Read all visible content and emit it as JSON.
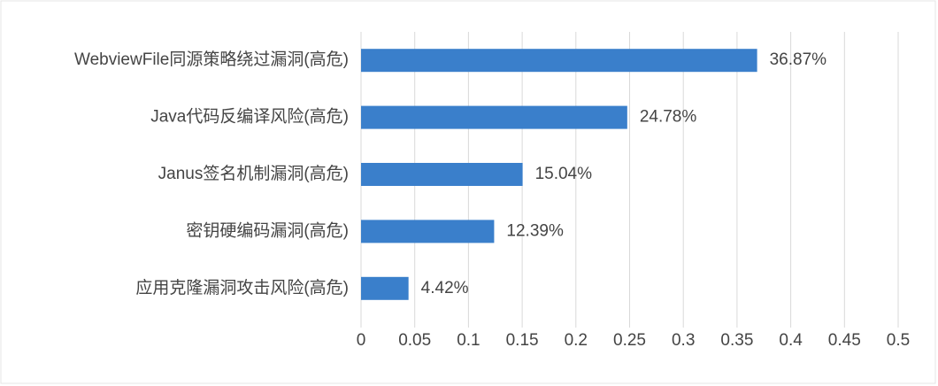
{
  "chart_data": {
    "type": "hbar",
    "categories": [
      "WebviewFile同源策略绕过漏洞(高危)",
      "Java代码反编译风险(高危)",
      "Janus签名机制漏洞(高危)",
      "密钥硬编码漏洞(高危)",
      "应用克隆漏洞攻击风险(高危)"
    ],
    "values": [
      0.3687,
      0.2478,
      0.1504,
      0.1239,
      0.0442
    ],
    "value_labels": [
      "36.87%",
      "24.78%",
      "15.04%",
      "12.39%",
      "4.42%"
    ],
    "color": "#3a7fcb",
    "xlim": [
      0,
      0.5
    ],
    "xticks": [
      0,
      0.05,
      0.1,
      0.15,
      0.2,
      0.25,
      0.3,
      0.35,
      0.4,
      0.45,
      0.5
    ],
    "grid": true
  }
}
